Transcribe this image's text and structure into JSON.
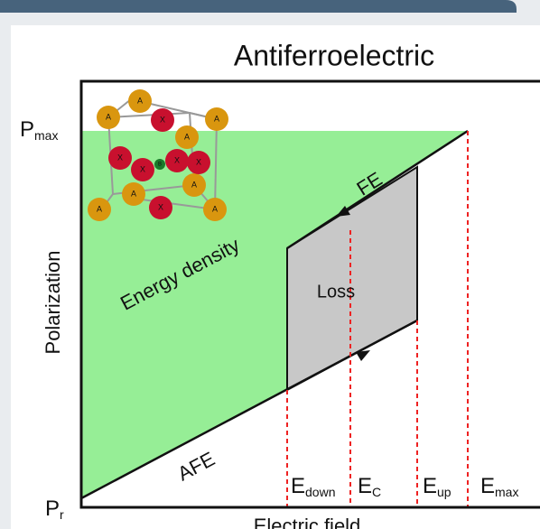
{
  "title": "Antiferroelectric",
  "axes": {
    "y_label": "Polarization",
    "x_label": "Electric field"
  },
  "y_marks": {
    "p_max": {
      "main": "P",
      "sub": "max"
    },
    "p_r": {
      "main": "P",
      "sub": "r"
    }
  },
  "x_marks": {
    "e_down": {
      "main": "E",
      "sub": "down"
    },
    "e_c": {
      "main": "E",
      "sub": "C"
    },
    "e_up": {
      "main": "E",
      "sub": "up"
    },
    "e_max": {
      "main": "E",
      "sub": "max"
    }
  },
  "regions": {
    "energy": "Energy density",
    "loss": "Loss"
  },
  "branches": {
    "fe": "FE",
    "afe": "AFE"
  },
  "crystal": {
    "a": "A",
    "x": "X",
    "b": "B"
  }
}
